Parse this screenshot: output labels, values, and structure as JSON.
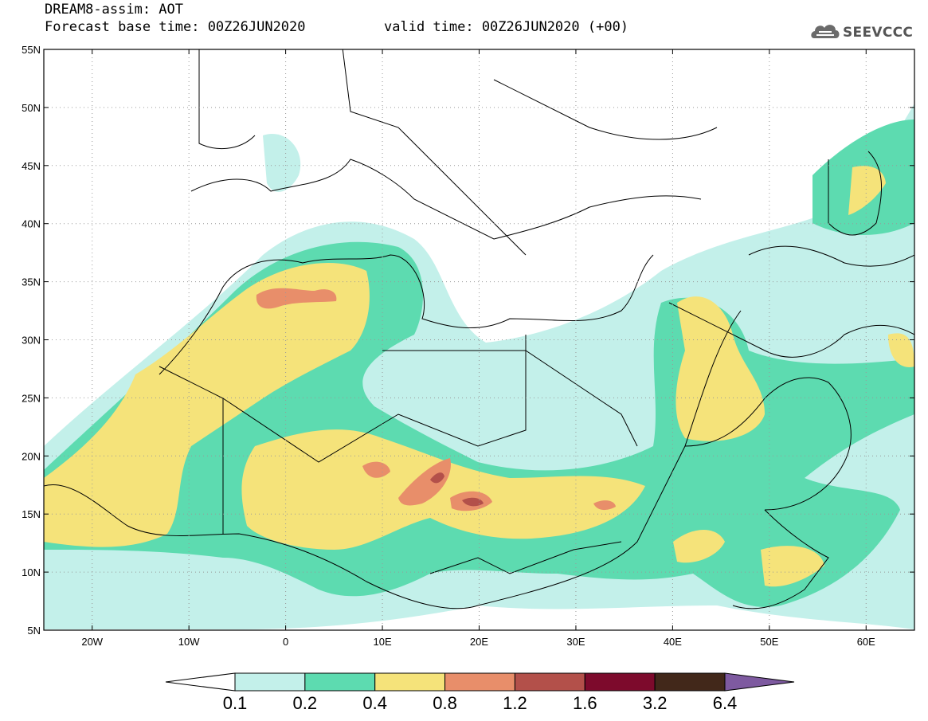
{
  "title": {
    "line1": "DREAM8-assim: AOT",
    "line2": "Forecast base time: 00Z26JUN2020",
    "valid": "valid time: 00Z26JUN2020 (+00)"
  },
  "logo": {
    "name": "cloud-logo-icon",
    "text": "SEEVCCC"
  },
  "map": {
    "lon_range": [
      -25,
      65
    ],
    "lat_range": [
      5,
      55
    ],
    "lat_ticks": [
      {
        "v": 55,
        "label": "55N"
      },
      {
        "v": 50,
        "label": "50N"
      },
      {
        "v": 45,
        "label": "45N"
      },
      {
        "v": 40,
        "label": "40N"
      },
      {
        "v": 35,
        "label": "35N"
      },
      {
        "v": 30,
        "label": "30N"
      },
      {
        "v": 25,
        "label": "25N"
      },
      {
        "v": 20,
        "label": "20N"
      },
      {
        "v": 15,
        "label": "15N"
      },
      {
        "v": 10,
        "label": "10N"
      },
      {
        "v": 5,
        "label": "5N"
      }
    ],
    "lon_ticks": [
      {
        "v": -20,
        "label": "20W"
      },
      {
        "v": -10,
        "label": "10W"
      },
      {
        "v": 0,
        "label": "0"
      },
      {
        "v": 10,
        "label": "10E"
      },
      {
        "v": 20,
        "label": "20E"
      },
      {
        "v": 30,
        "label": "30E"
      },
      {
        "v": 40,
        "label": "40E"
      },
      {
        "v": 50,
        "label": "50E"
      },
      {
        "v": 60,
        "label": "60E"
      }
    ],
    "grid_dotted": true
  },
  "colorbar": {
    "levels": [
      "0.1",
      "0.2",
      "0.4",
      "0.8",
      "1.2",
      "1.6",
      "3.2",
      "6.4"
    ],
    "colors": [
      "#ffffff",
      "#c3f0ea",
      "#5ddbb0",
      "#f5e37a",
      "#e88e6a",
      "#b3504a",
      "#7d0a2c",
      "#42281a",
      "#7e5aa0"
    ]
  }
}
